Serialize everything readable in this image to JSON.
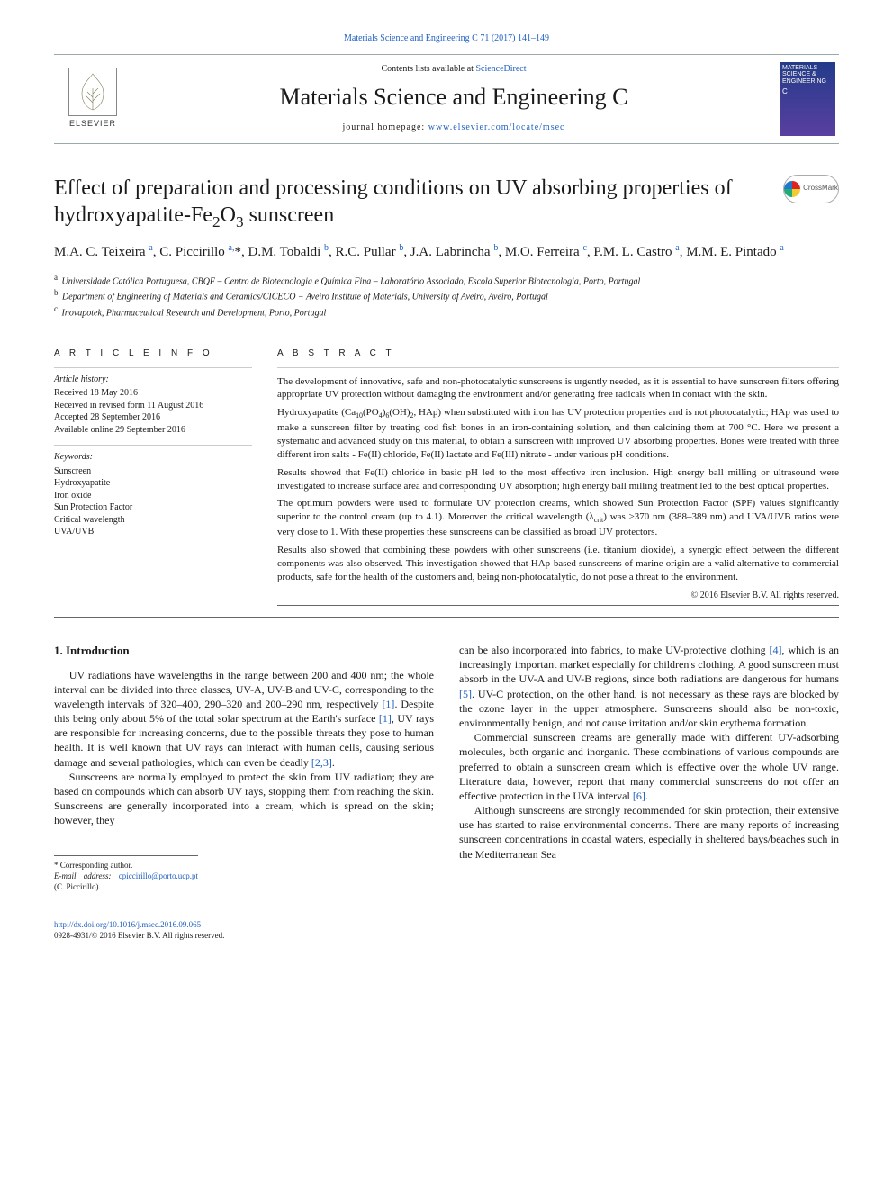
{
  "colors": {
    "link": "#2060c0",
    "text": "#1a1a1a",
    "rule": "#666666",
    "rule_light": "#cccccc"
  },
  "top_link": {
    "text": "Materials Science and Engineering C 71 (2017) 141–149"
  },
  "masthead": {
    "contents_line_prefix": "Contents lists available at ",
    "contents_line_link": "ScienceDirect",
    "journal_title": "Materials Science and Engineering C",
    "homepage_prefix": "journal homepage: ",
    "homepage_link": "www.elsevier.com/locate/msec",
    "publisher_word": "ELSEVIER"
  },
  "title_html": "Effect of preparation and processing conditions on UV absorbing properties of hydroxyapatite-Fe<sub>2</sub>O<sub>3</sub> sunscreen",
  "crossmark": "CrossMark",
  "authors_html": "M.A. C. Teixeira <sup class='sup'>a</sup>, C. Piccirillo <sup class='sup'>a,</sup>*, D.M. Tobaldi <sup class='sup'>b</sup>, R.C. Pullar <sup class='sup'>b</sup>, J.A. Labrincha <sup class='sup'>b</sup>, M.O. Ferreira <sup class='sup'>c</sup>, P.M. L. Castro <sup class='sup'>a</sup>, M.M. E. Pintado <sup class='sup'>a</sup>",
  "affiliations": [
    {
      "tag": "a",
      "text": "Universidade Católica Portuguesa, CBQF – Centro de Biotecnologia e Química Fina – Laboratório Associado, Escola Superior Biotecnologia, Porto, Portugal"
    },
    {
      "tag": "b",
      "text": "Department of Engineering of Materials and Ceramics/CICECO − Aveiro Institute of Materials, University of Aveiro, Aveiro, Portugal"
    },
    {
      "tag": "c",
      "text": "Inovapotek, Pharmaceutical Research and Development, Porto, Portugal"
    }
  ],
  "article_info_head": "A R T I C L E   I N F O",
  "abstract_head": "A B S T R A C T",
  "history": {
    "label": "Article history:",
    "lines": [
      "Received 18 May 2016",
      "Received in revised form 11 August 2016",
      "Accepted 28 September 2016",
      "Available online 29 September 2016"
    ]
  },
  "keywords": {
    "label": "Keywords:",
    "items": [
      "Sunscreen",
      "Hydroxyapatite",
      "Iron oxide",
      "Sun Protection Factor",
      "Critical wavelength",
      "UVA/UVB"
    ]
  },
  "abstract_paragraphs": [
    "The development of innovative, safe and non-photocatalytic sunscreens is urgently needed, as it is essential to have sunscreen filters offering appropriate UV protection without damaging the environment and/or generating free radicals when in contact with the skin.",
    "Hydroxyapatite (Ca<sub>10</sub>(PO<sub>4</sub>)<sub>6</sub>(OH)<sub>2</sub>, HAp) when substituted with iron has UV protection properties and is not photocatalytic; HAp was used to make a sunscreen filter by treating cod fish bones in an iron-containing solution, and then calcining them at 700 °C. Here we present a systematic and advanced study on this material, to obtain a sunscreen with improved UV absorbing properties. Bones were treated with three different iron salts - Fe(II) chloride, Fe(II) lactate and Fe(III) nitrate - under various pH conditions.",
    "Results showed that Fe(II) chloride in basic pH led to the most effective iron inclusion. High energy ball milling or ultrasound were investigated to increase surface area and corresponding UV absorption; high energy ball milling treatment led to the best optical properties.",
    "The optimum powders were used to formulate UV protection creams, which showed Sun Protection Factor (SPF) values significantly superior to the control cream (up to 4.1). Moreover the critical wavelength (λ<sub>crit</sub>) was >370 nm (388–389 nm) and UVA/UVB ratios were very close to 1. With these properties these sunscreens can be classified as broad UV protectors.",
    "Results also showed that combining these powders with other sunscreens (i.e. titanium dioxide), a synergic effect between the different components was also observed. This investigation showed that HAp-based sunscreens of marine origin are a valid alternative to commercial products, safe for the health of the customers and, being non-photocatalytic, do not pose a threat to the environment."
  ],
  "copyright": "© 2016 Elsevier B.V. All rights reserved.",
  "intro": {
    "heading": "1. Introduction",
    "left_paras": [
      "UV radiations have wavelengths in the range between 200 and 400 nm; the whole interval can be divided into three classes, UV-A, UV-B and UV-C, corresponding to the wavelength intervals of 320–400, 290–320 and 200–290 nm, respectively <span class='cite'>[1]</span>. Despite this being only about 5% of the total solar spectrum at the Earth's surface <span class='cite'>[1]</span>, UV rays are responsible for increasing concerns, due to the possible threats they pose to human health. It is well known that UV rays can interact with human cells, causing serious damage and several pathologies, which can even be deadly <span class='cite'>[2,3]</span>.",
      "Sunscreens are normally employed to protect the skin from UV radiation; they are based on compounds which can absorb UV rays, stopping them from reaching the skin. Sunscreens are generally incorporated into a cream, which is spread on the skin; however, they"
    ],
    "right_paras": [
      "can be also incorporated into fabrics, to make UV-protective clothing <span class='cite'>[4]</span>, which is an increasingly important market especially for children's clothing. A good sunscreen must absorb in the UV-A and UV-B regions, since both radiations are dangerous for humans <span class='cite'>[5]</span>. UV-C protection, on the other hand, is not necessary as these rays are blocked by the ozone layer in the upper atmosphere. Sunscreens should also be non-toxic, environmentally benign, and not cause irritation and/or skin erythema formation.",
      "Commercial sunscreen creams are generally made with different UV-adsorbing molecules, both organic and inorganic. These combinations of various compounds are preferred to obtain a sunscreen cream which is effective over the whole UV range. Literature data, however, report that many commercial sunscreens do not offer an effective protection in the UVA interval <span class='cite'>[6]</span>.",
      "Although sunscreens are strongly recommended for skin protection, their extensive use has started to raise environmental concerns. There are many reports of increasing sunscreen concentrations in coastal waters, especially in sheltered bays/beaches such in the Mediterranean Sea"
    ]
  },
  "corresponding": {
    "label": "* Corresponding author.",
    "email_label": "E-mail address:",
    "email": "cpiccirillo@porto.ucp.pt",
    "name_paren": "(C. Piccirillo)."
  },
  "footer": {
    "doi": "http://dx.doi.org/10.1016/j.msec.2016.09.065",
    "issn_line": "0928-4931/© 2016 Elsevier B.V. All rights reserved."
  }
}
